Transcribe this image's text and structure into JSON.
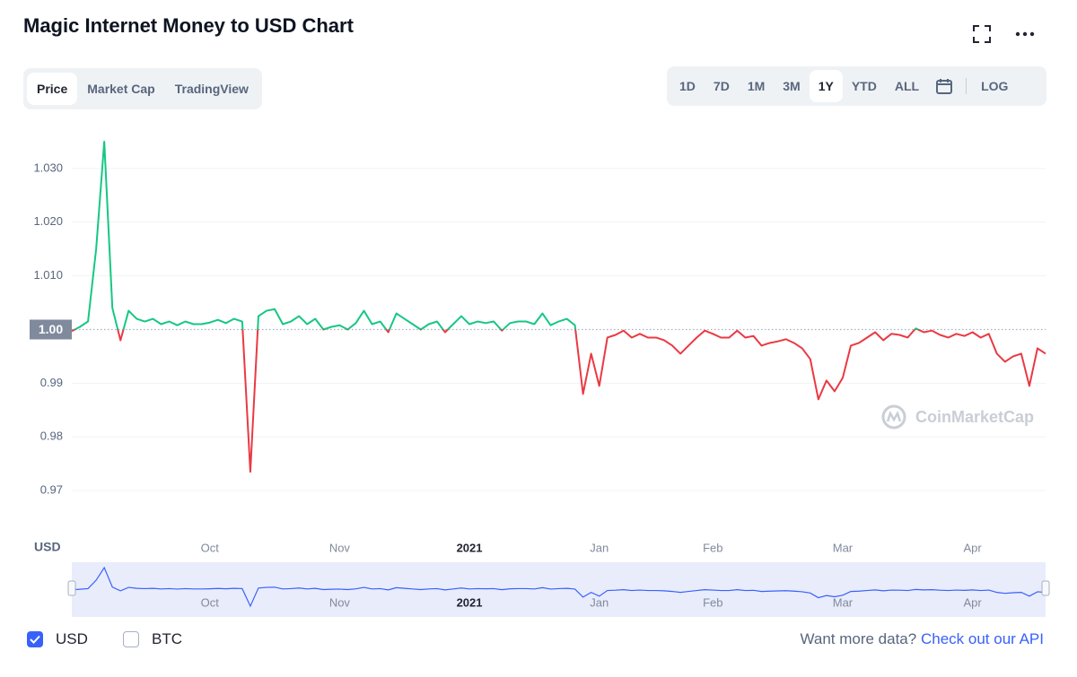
{
  "header": {
    "title": "Magic Internet Money to USD Chart"
  },
  "tabs": [
    "Price",
    "Market Cap",
    "TradingView"
  ],
  "ranges": [
    "1D",
    "7D",
    "1M",
    "3M",
    "1Y",
    "YTD",
    "ALL"
  ],
  "log_button": "LOG",
  "chart_data": {
    "type": "line",
    "currency_label": "USD",
    "watermark": "CoinMarketCap",
    "categories": [
      null,
      null,
      null,
      null,
      null,
      null,
      null,
      null,
      null,
      null,
      null,
      null,
      null,
      null,
      null,
      null,
      null,
      "Oct",
      null,
      null,
      null,
      null,
      null,
      null,
      null,
      null,
      null,
      null,
      null,
      null,
      null,
      null,
      null,
      "Nov",
      null,
      null,
      null,
      null,
      null,
      null,
      null,
      null,
      null,
      null,
      null,
      null,
      null,
      null,
      null,
      "2021",
      null,
      null,
      null,
      null,
      null,
      null,
      null,
      null,
      null,
      null,
      null,
      null,
      null,
      null,
      null,
      "Jan",
      null,
      null,
      null,
      null,
      null,
      null,
      null,
      null,
      null,
      null,
      null,
      null,
      null,
      "Feb",
      null,
      null,
      null,
      null,
      null,
      null,
      null,
      null,
      null,
      null,
      null,
      null,
      null,
      null,
      null,
      "Mar",
      null,
      null,
      null,
      null,
      null,
      null,
      null,
      null,
      null,
      null,
      null,
      null,
      null,
      null,
      null,
      "Apr",
      null,
      null,
      null,
      null,
      null,
      null,
      null,
      null,
      null
    ],
    "values": [
      0.9997,
      1.0005,
      1.0015,
      1.015,
      1.035,
      1.004,
      0.998,
      1.0035,
      1.002,
      1.0015,
      1.002,
      1.001,
      1.0015,
      1.0008,
      1.0015,
      1.001,
      1.001,
      1.0013,
      1.0018,
      1.0012,
      1.002,
      1.0015,
      0.9735,
      1.0025,
      1.0035,
      1.0038,
      1.001,
      1.0015,
      1.0025,
      1.001,
      1.002,
      1,
      1.0005,
      1.0008,
      1,
      1.0012,
      1.0035,
      1.001,
      1.0015,
      0.9995,
      1.003,
      1.002,
      1.001,
      1,
      1.001,
      1.0015,
      0.9995,
      1.001,
      1.0025,
      1.001,
      1.0015,
      1.0012,
      1.0015,
      0.9998,
      1.0012,
      1.0015,
      1.0015,
      1.001,
      1.003,
      1.0008,
      1.0015,
      1.002,
      1.0008,
      0.988,
      0.9955,
      0.9895,
      0.9985,
      0.999,
      0.9998,
      0.9985,
      0.9992,
      0.9985,
      0.9985,
      0.998,
      0.997,
      0.9955,
      0.997,
      0.9985,
      0.9998,
      0.9992,
      0.9985,
      0.9985,
      0.9998,
      0.9985,
      0.9988,
      0.997,
      0.9975,
      0.9978,
      0.9982,
      0.9975,
      0.9965,
      0.9945,
      0.987,
      0.9905,
      0.9885,
      0.991,
      0.997,
      0.9975,
      0.9985,
      0.9995,
      0.998,
      0.9992,
      0.999,
      0.9985,
      1.0002,
      0.9995,
      0.9998,
      0.999,
      0.9985,
      0.9992,
      0.9988,
      0.9995,
      0.9985,
      0.9992,
      0.9955,
      0.994,
      0.995,
      0.9955,
      0.9895,
      0.9965,
      0.9955
    ],
    "ylim": [
      0.962,
      1.038
    ],
    "yticks": [
      0.97,
      0.98,
      0.99,
      {
        "value": 1.01,
        "label": "1.010"
      },
      {
        "value": 1.02,
        "label": "1.020"
      },
      {
        "value": 1.03,
        "label": "1.030"
      }
    ],
    "baseline": {
      "value": 1,
      "label": "1.00"
    },
    "grid": true,
    "up_color": "#16c784",
    "down_color": "#ea3943",
    "navigator_color": "#3861fb"
  },
  "footer": {
    "checkboxes": [
      "USD",
      "BTC"
    ],
    "prompt": "Want more data?",
    "link": "Check out our API"
  }
}
